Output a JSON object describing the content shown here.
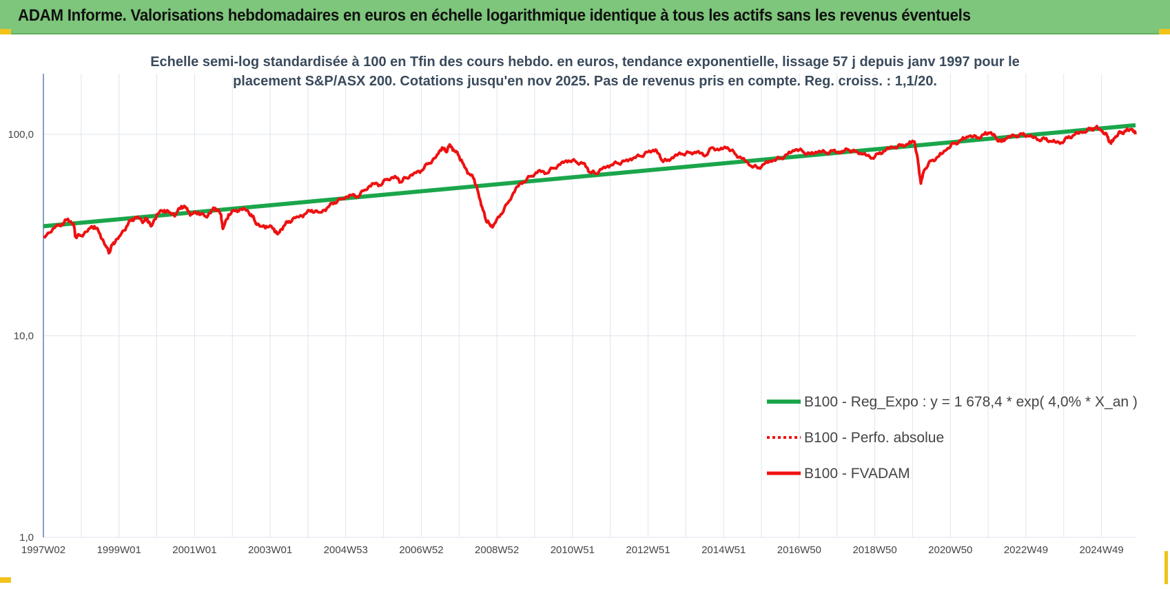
{
  "header": {
    "title": "ADAM Informe. Valorisations hebdomadaires en euros en échelle logarithmique identique à tous les actifs sans les revenus éventuels"
  },
  "colors": {
    "header_bg": "#7dc67b",
    "trend": "#1aa64b",
    "series": "#ee1111",
    "corner": "#f2c21b"
  },
  "chart_data": {
    "type": "line",
    "title": "Echelle semi-log standardisée à 100 en Tfin des cours hebdo. en euros, tendance exponentielle, lissage 57 j depuis janv 1997 pour le placement S&P/ASX 200.  Cotations jusqu'en nov 2025. Pas de revenus pris en compte. Reg. croiss. : 1,1/20.",
    "title_lines": [
      "Echelle semi-log standardisée à 100 en Tfin des cours hebdo. en euros, tendance exponentielle, lissage 57 j depuis janv 1997 pour le",
      "placement S&P/ASX 200.  Cotations jusqu'en nov 2025. Pas de revenus pris en compte. Reg. croiss. : 1,1/20."
    ],
    "y_scale": "log",
    "ylim": [
      1,
      200
    ],
    "y_ticks": [
      {
        "value": 1,
        "label": "1,0"
      },
      {
        "value": 10,
        "label": "10,0"
      },
      {
        "value": 100,
        "label": "100,0"
      }
    ],
    "xlim": [
      1997.0,
      2025.9
    ],
    "x_ticks": [
      {
        "value": 1997.0,
        "label": "1997W02"
      },
      {
        "value": 1999.0,
        "label": "1999W01"
      },
      {
        "value": 2001.0,
        "label": "2001W01"
      },
      {
        "value": 2003.0,
        "label": "2003W01"
      },
      {
        "value": 2005.0,
        "label": "2004W53"
      },
      {
        "value": 2007.0,
        "label": "2006W52"
      },
      {
        "value": 2009.0,
        "label": "2008W52"
      },
      {
        "value": 2011.0,
        "label": "2010W51"
      },
      {
        "value": 2013.0,
        "label": "2012W51"
      },
      {
        "value": 2015.0,
        "label": "2014W51"
      },
      {
        "value": 2017.0,
        "label": "2016W50"
      },
      {
        "value": 2019.0,
        "label": "2018W50"
      },
      {
        "value": 2021.0,
        "label": "2020W50"
      },
      {
        "value": 2023.0,
        "label": "2022W49"
      },
      {
        "value": 2025.0,
        "label": "2024W49"
      }
    ],
    "grid": true,
    "legend_position": "bottom-right",
    "series": [
      {
        "name": "B100 - Reg_Expo : y = 1 678,4 * exp( 4,0% *  X_an )",
        "style": "solid-thick",
        "color": "#1aa64b",
        "points": [
          [
            1997.0,
            35.0
          ],
          [
            2025.9,
            111.0
          ]
        ]
      },
      {
        "name": "B100 - Perfo. absolue",
        "style": "dotted",
        "color": "#ee1111",
        "points": []
      },
      {
        "name": "B100 - FVADAM",
        "style": "solid",
        "color": "#ee1111",
        "points": [
          [
            1997.0,
            31
          ],
          [
            1997.25,
            34
          ],
          [
            1997.5,
            36
          ],
          [
            1997.65,
            38
          ],
          [
            1997.8,
            36
          ],
          [
            1997.85,
            31
          ],
          [
            1998.0,
            31.5
          ],
          [
            1998.2,
            34
          ],
          [
            1998.35,
            35
          ],
          [
            1998.5,
            32
          ],
          [
            1998.65,
            28
          ],
          [
            1998.75,
            26
          ],
          [
            1998.85,
            29
          ],
          [
            1999.0,
            31
          ],
          [
            1999.2,
            35
          ],
          [
            1999.35,
            38
          ],
          [
            1999.5,
            39
          ],
          [
            1999.65,
            37
          ],
          [
            1999.75,
            38
          ],
          [
            1999.85,
            35
          ],
          [
            2000.0,
            40
          ],
          [
            2000.2,
            42
          ],
          [
            2000.35,
            41
          ],
          [
            2000.5,
            40
          ],
          [
            2000.65,
            44
          ],
          [
            2000.8,
            43
          ],
          [
            2000.9,
            40
          ],
          [
            2001.1,
            41
          ],
          [
            2001.3,
            39
          ],
          [
            2001.45,
            42
          ],
          [
            2001.55,
            43
          ],
          [
            2001.7,
            40
          ],
          [
            2001.75,
            34
          ],
          [
            2001.9,
            40
          ],
          [
            2002.1,
            42
          ],
          [
            2002.3,
            43
          ],
          [
            2002.5,
            40
          ],
          [
            2002.6,
            37
          ],
          [
            2002.75,
            35
          ],
          [
            2002.9,
            35
          ],
          [
            2003.1,
            34
          ],
          [
            2003.2,
            32
          ],
          [
            2003.35,
            35
          ],
          [
            2003.5,
            37
          ],
          [
            2003.7,
            39
          ],
          [
            2003.9,
            40
          ],
          [
            2004.1,
            42
          ],
          [
            2004.3,
            41
          ],
          [
            2004.5,
            43
          ],
          [
            2004.7,
            46
          ],
          [
            2004.9,
            48
          ],
          [
            2005.1,
            50
          ],
          [
            2005.3,
            49
          ],
          [
            2005.5,
            53
          ],
          [
            2005.7,
            57
          ],
          [
            2005.9,
            56
          ],
          [
            2006.1,
            60
          ],
          [
            2006.3,
            62
          ],
          [
            2006.45,
            58
          ],
          [
            2006.6,
            61
          ],
          [
            2006.8,
            64
          ],
          [
            2007.0,
            66
          ],
          [
            2007.2,
            72
          ],
          [
            2007.4,
            78
          ],
          [
            2007.55,
            86
          ],
          [
            2007.65,
            82
          ],
          [
            2007.75,
            89
          ],
          [
            2007.85,
            84
          ],
          [
            2008.0,
            78
          ],
          [
            2008.1,
            72
          ],
          [
            2008.25,
            64
          ],
          [
            2008.4,
            60
          ],
          [
            2008.5,
            52
          ],
          [
            2008.6,
            44
          ],
          [
            2008.7,
            38
          ],
          [
            2008.8,
            36
          ],
          [
            2008.9,
            35
          ],
          [
            2009.1,
            40
          ],
          [
            2009.3,
            46
          ],
          [
            2009.5,
            54
          ],
          [
            2009.7,
            58
          ],
          [
            2009.9,
            62
          ],
          [
            2010.1,
            66
          ],
          [
            2010.3,
            64
          ],
          [
            2010.5,
            68
          ],
          [
            2010.7,
            72
          ],
          [
            2010.9,
            74
          ],
          [
            2011.1,
            73
          ],
          [
            2011.3,
            72
          ],
          [
            2011.45,
            65
          ],
          [
            2011.6,
            64
          ],
          [
            2011.8,
            68
          ],
          [
            2012.0,
            70
          ],
          [
            2012.2,
            72
          ],
          [
            2012.4,
            74
          ],
          [
            2012.6,
            76
          ],
          [
            2012.8,
            78
          ],
          [
            2013.0,
            82
          ],
          [
            2013.2,
            84
          ],
          [
            2013.35,
            75
          ],
          [
            2013.5,
            74
          ],
          [
            2013.7,
            78
          ],
          [
            2013.9,
            80
          ],
          [
            2014.1,
            81
          ],
          [
            2014.3,
            82
          ],
          [
            2014.5,
            78
          ],
          [
            2014.7,
            86
          ],
          [
            2014.9,
            84
          ],
          [
            2015.1,
            86
          ],
          [
            2015.3,
            80
          ],
          [
            2015.5,
            76
          ],
          [
            2015.7,
            70
          ],
          [
            2015.9,
            68
          ],
          [
            2016.1,
            72
          ],
          [
            2016.3,
            74
          ],
          [
            2016.5,
            76
          ],
          [
            2016.7,
            80
          ],
          [
            2016.9,
            84
          ],
          [
            2017.1,
            82
          ],
          [
            2017.3,
            80
          ],
          [
            2017.5,
            82
          ],
          [
            2017.7,
            81
          ],
          [
            2017.9,
            83
          ],
          [
            2018.1,
            81
          ],
          [
            2018.3,
            84
          ],
          [
            2018.5,
            82
          ],
          [
            2018.7,
            80
          ],
          [
            2018.9,
            76
          ],
          [
            2019.1,
            80
          ],
          [
            2019.3,
            84
          ],
          [
            2019.5,
            86
          ],
          [
            2019.7,
            88
          ],
          [
            2019.9,
            90
          ],
          [
            2020.05,
            92
          ],
          [
            2020.15,
            72
          ],
          [
            2020.22,
            57
          ],
          [
            2020.3,
            66
          ],
          [
            2020.5,
            74
          ],
          [
            2020.7,
            78
          ],
          [
            2020.9,
            84
          ],
          [
            2021.1,
            90
          ],
          [
            2021.3,
            94
          ],
          [
            2021.5,
            98
          ],
          [
            2021.7,
            96
          ],
          [
            2021.9,
            100
          ],
          [
            2022.05,
            102
          ],
          [
            2022.2,
            96
          ],
          [
            2022.35,
            92
          ],
          [
            2022.5,
            96
          ],
          [
            2022.7,
            98
          ],
          [
            2022.9,
            100
          ],
          [
            2023.1,
            98
          ],
          [
            2023.3,
            94
          ],
          [
            2023.5,
            95
          ],
          [
            2023.7,
            92
          ],
          [
            2023.9,
            90
          ],
          [
            2024.1,
            96
          ],
          [
            2024.3,
            100
          ],
          [
            2024.5,
            102
          ],
          [
            2024.7,
            106
          ],
          [
            2024.85,
            108
          ],
          [
            2025.0,
            104
          ],
          [
            2025.15,
            98
          ],
          [
            2025.25,
            90
          ],
          [
            2025.35,
            96
          ],
          [
            2025.5,
            102
          ],
          [
            2025.65,
            104
          ],
          [
            2025.8,
            106
          ],
          [
            2025.9,
            100
          ]
        ]
      }
    ]
  }
}
